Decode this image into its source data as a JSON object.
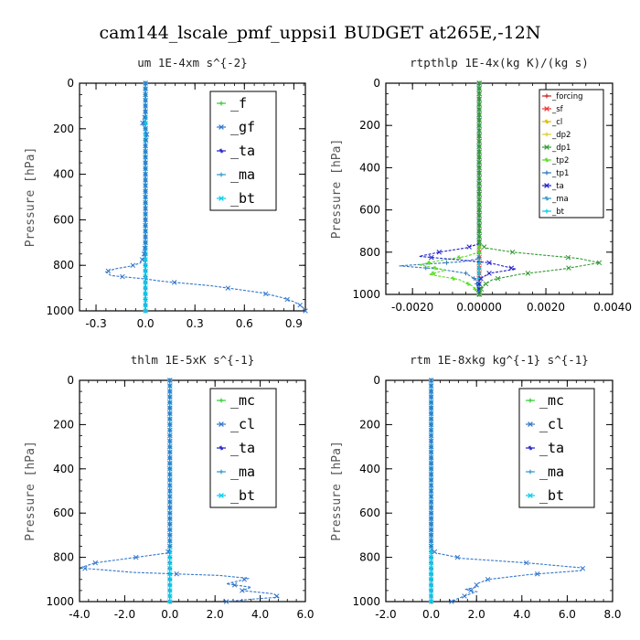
{
  "page_title": "cam144_lscale_pmf_uppsi1  BUDGET at265E,-12N",
  "chart_data": [
    {
      "type": "line",
      "title": "um  1E-4xm s^{-2}",
      "ylabel": "Pressure [hPa]",
      "xlim": [
        -0.4,
        0.97
      ],
      "ylim": [
        0,
        1000
      ],
      "x_ticks": [
        -0.3,
        0.0,
        0.3,
        0.6,
        0.9
      ],
      "x_tick_labels": [
        "-0.3",
        "0.0",
        "0.3",
        "0.6",
        "0.9"
      ],
      "y_ticks": [
        0,
        200,
        400,
        600,
        800,
        1000
      ],
      "legend_style": "big",
      "series": [
        {
          "name": "_f",
          "color": "#33cc33",
          "points": [
            [
              0.0,
              0
            ],
            [
              0.0,
              1000
            ]
          ]
        },
        {
          "name": "_gf",
          "color": "#3377cc",
          "points": [
            [
              0.0,
              0
            ],
            [
              0.0,
              140
            ],
            [
              -0.01,
              160
            ],
            [
              -0.02,
              180
            ],
            [
              0.0,
              200
            ],
            [
              0.01,
              230
            ],
            [
              0.0,
              260
            ],
            [
              0.0,
              300
            ],
            [
              0.0,
              700
            ],
            [
              -0.01,
              760
            ],
            [
              -0.03,
              790
            ],
            [
              -0.1,
              805
            ],
            [
              -0.18,
              815
            ],
            [
              -0.24,
              828
            ],
            [
              -0.21,
              845
            ],
            [
              0.0,
              860
            ],
            [
              0.1,
              870
            ],
            [
              0.25,
              880
            ],
            [
              0.4,
              890
            ],
            [
              0.55,
              905
            ],
            [
              0.7,
              920
            ],
            [
              0.82,
              940
            ],
            [
              0.9,
              960
            ],
            [
              0.95,
              980
            ],
            [
              0.97,
              1000
            ]
          ]
        },
        {
          "name": "_ta",
          "color": "#2222cc",
          "points": [
            [
              0.0,
              0
            ],
            [
              0.0,
              1000
            ]
          ]
        },
        {
          "name": "_ma",
          "color": "#3399cc",
          "points": [
            [
              0.0,
              0
            ],
            [
              0.0,
              1000
            ]
          ]
        },
        {
          "name": "_bt",
          "color": "#00ccee",
          "points": [
            [
              0.0,
              0
            ],
            [
              0.0,
              1000
            ]
          ]
        }
      ]
    },
    {
      "type": "line",
      "title": "rtpthlp  1E-4x(kg K)/(kg s)",
      "ylabel": "Pressure [hPa]",
      "xlim": [
        -0.0028,
        0.004
      ],
      "ylim": [
        0,
        1000
      ],
      "x_ticks": [
        -0.002,
        0.0,
        0.002,
        0.004
      ],
      "x_tick_labels": [
        "-0.0020",
        "0.00000",
        "0.0020",
        "0.0040"
      ],
      "y_ticks": [
        0,
        200,
        400,
        600,
        800,
        1000
      ],
      "legend_style": "small",
      "series": [
        {
          "name": "_forcing",
          "color": "#cc2222",
          "points": [
            [
              0.0,
              0
            ],
            [
              0.0,
              1000
            ]
          ]
        },
        {
          "name": "_sf",
          "color": "#ee3333",
          "points": [
            [
              0.0,
              0
            ],
            [
              0.0,
              1000
            ]
          ]
        },
        {
          "name": "_cl",
          "color": "#ddbb00",
          "points": [
            [
              0.0,
              0
            ],
            [
              0.0,
              1000
            ]
          ]
        },
        {
          "name": "_dp2",
          "color": "#ddcc33",
          "points": [
            [
              0.0,
              0
            ],
            [
              0.0,
              1000
            ]
          ]
        },
        {
          "name": "_dp1",
          "color": "#339933",
          "points": [
            [
              0.0,
              0
            ],
            [
              0.0,
              760
            ],
            [
              0.0002,
              780
            ],
            [
              0.001,
              800
            ],
            [
              0.002,
              815
            ],
            [
              0.003,
              830
            ],
            [
              0.0036,
              850
            ],
            [
              0.0025,
              880
            ],
            [
              0.0012,
              905
            ],
            [
              0.0004,
              930
            ],
            [
              0.0001,
              960
            ],
            [
              0.0,
              1000
            ]
          ]
        },
        {
          "name": "_tp2",
          "color": "#55dd22",
          "points": [
            [
              0.0,
              0
            ],
            [
              0.0,
              800
            ],
            [
              -0.0004,
              820
            ],
            [
              -0.0012,
              840
            ],
            [
              -0.0018,
              860
            ],
            [
              -0.001,
              885
            ],
            [
              -0.0015,
              905
            ],
            [
              -0.0006,
              930
            ],
            [
              -0.0002,
              960
            ],
            [
              0.0,
              1000
            ]
          ]
        },
        {
          "name": "_tp1",
          "color": "#3377bb",
          "points": [
            [
              0.0,
              0
            ],
            [
              0.0,
              830
            ],
            [
              -0.0005,
              845
            ],
            [
              -0.0024,
              865
            ],
            [
              -0.0012,
              880
            ],
            [
              -0.0004,
              900
            ],
            [
              -0.0001,
              930
            ],
            [
              0.0,
              1000
            ]
          ]
        },
        {
          "name": "_ta",
          "color": "#2222cc",
          "points": [
            [
              0.0,
              0
            ],
            [
              0.0,
              760
            ],
            [
              -0.0004,
              780
            ],
            [
              -0.0012,
              800
            ],
            [
              -0.0018,
              820
            ],
            [
              -0.0007,
              835
            ],
            [
              0.0003,
              850
            ],
            [
              0.0011,
              880
            ],
            [
              0.0003,
              900
            ],
            [
              0.0,
              930
            ],
            [
              0.0,
              1000
            ]
          ]
        },
        {
          "name": "_ma",
          "color": "#3399cc",
          "points": [
            [
              0.0,
              0
            ],
            [
              0.0,
              1000
            ]
          ]
        },
        {
          "name": "_bt",
          "color": "#00ccee",
          "points": [
            [
              0.0,
              0
            ],
            [
              0.0,
              1000
            ]
          ]
        }
      ]
    },
    {
      "type": "line",
      "title": "thlm  1E-5xK s^{-1}",
      "ylabel": "Pressure [hPa]",
      "xlim": [
        -4.0,
        6.0
      ],
      "ylim": [
        0,
        1000
      ],
      "x_ticks": [
        -4.0,
        -2.0,
        0.0,
        2.0,
        4.0,
        6.0
      ],
      "x_tick_labels": [
        "-4.0",
        "-2.0",
        "0.0",
        "2.0",
        "4.0",
        "6.0"
      ],
      "y_ticks": [
        0,
        200,
        400,
        600,
        800,
        1000
      ],
      "legend_style": "big",
      "series": [
        {
          "name": "_mc",
          "color": "#33cc33",
          "points": [
            [
              0.0,
              0
            ],
            [
              0.0,
              1000
            ]
          ]
        },
        {
          "name": "_cl",
          "color": "#3377cc",
          "points": [
            [
              0.0,
              0
            ],
            [
              0.0,
              760
            ],
            [
              -0.1,
              780
            ],
            [
              -1.5,
              800
            ],
            [
              -3.3,
              825
            ],
            [
              -4.0,
              848
            ],
            [
              -1.6,
              868
            ],
            [
              2.2,
              882
            ],
            [
              3.5,
              895
            ],
            [
              2.5,
              920
            ],
            [
              3.6,
              935
            ],
            [
              3.2,
              950
            ],
            [
              4.6,
              965
            ],
            [
              4.8,
              980
            ],
            [
              3.5,
              990
            ],
            [
              2.5,
              1000
            ]
          ]
        },
        {
          "name": "_ta",
          "color": "#2222cc",
          "points": [
            [
              0.0,
              0
            ],
            [
              0.0,
              1000
            ]
          ]
        },
        {
          "name": "_ma",
          "color": "#3399cc",
          "points": [
            [
              0.0,
              0
            ],
            [
              0.0,
              1000
            ]
          ]
        },
        {
          "name": "_bt",
          "color": "#00ccee",
          "points": [
            [
              0.0,
              0
            ],
            [
              0.0,
              1000
            ]
          ]
        }
      ]
    },
    {
      "type": "line",
      "title": "rtm  1E-8xkg kg^{-1} s^{-1}",
      "ylabel": "Pressure [hPa]",
      "xlim": [
        -2.0,
        8.0
      ],
      "ylim": [
        0,
        1000
      ],
      "x_ticks": [
        -2.0,
        0.0,
        2.0,
        4.0,
        6.0,
        8.0
      ],
      "x_tick_labels": [
        "-2.0",
        "0.0",
        "2.0",
        "4.0",
        "6.0",
        "8.0"
      ],
      "y_ticks": [
        0,
        200,
        400,
        600,
        800,
        1000
      ],
      "legend_style": "big",
      "series": [
        {
          "name": "_mc",
          "color": "#33cc33",
          "points": [
            [
              0.0,
              0
            ],
            [
              0.0,
              1000
            ]
          ]
        },
        {
          "name": "_cl",
          "color": "#3377cc",
          "points": [
            [
              0.0,
              0
            ],
            [
              0.0,
              760
            ],
            [
              0.2,
              780
            ],
            [
              1.4,
              805
            ],
            [
              4.2,
              825
            ],
            [
              6.7,
              848
            ],
            [
              6.6,
              860
            ],
            [
              4.3,
              878
            ],
            [
              2.5,
              900
            ],
            [
              2.0,
              920
            ],
            [
              2.0,
              935
            ],
            [
              1.5,
              945
            ],
            [
              2.0,
              955
            ],
            [
              1.6,
              970
            ],
            [
              1.2,
              985
            ],
            [
              0.9,
              1000
            ]
          ]
        },
        {
          "name": "_ta",
          "color": "#2222cc",
          "points": [
            [
              0.0,
              0
            ],
            [
              0.0,
              1000
            ]
          ]
        },
        {
          "name": "_ma",
          "color": "#3399cc",
          "points": [
            [
              0.0,
              0
            ],
            [
              0.0,
              1000
            ]
          ]
        },
        {
          "name": "_bt",
          "color": "#00ccee",
          "points": [
            [
              0.0,
              0
            ],
            [
              0.0,
              1000
            ]
          ]
        }
      ]
    }
  ]
}
